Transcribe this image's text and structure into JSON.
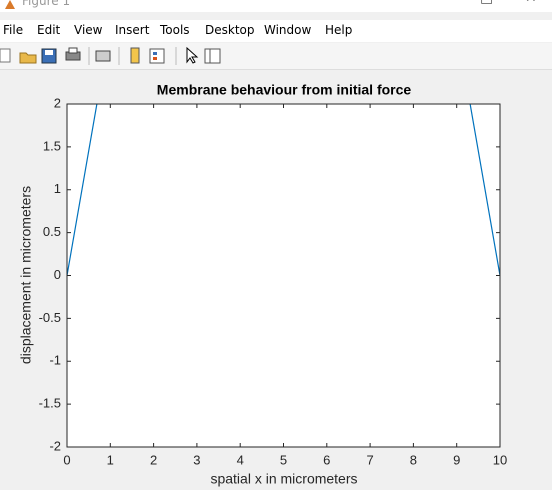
{
  "window": {
    "title": "Figure 1",
    "menu": [
      "File",
      "Edit",
      "View",
      "Insert",
      "Tools",
      "Desktop",
      "Window",
      "Help"
    ]
  },
  "chart_data": {
    "type": "line",
    "title": "Membrane behaviour from initial force",
    "xlabel": "spatial x in micrometers",
    "ylabel": "displacement in micrometers",
    "series": [
      {
        "color": "#0072bd",
        "x": [
          0,
          0.69
        ],
        "values": [
          0,
          2
        ]
      },
      {
        "color": "#0072bd",
        "x": [
          9.31,
          10
        ],
        "values": [
          2,
          0
        ]
      }
    ],
    "xlim": [
      0,
      10
    ],
    "xticks": [
      0,
      1,
      2,
      3,
      4,
      5,
      6,
      7,
      8,
      9,
      10
    ],
    "ylim": [
      -2,
      2
    ],
    "yticks": [
      -2,
      -1.5,
      -1,
      -0.5,
      0,
      0.5,
      1,
      1.5,
      2
    ],
    "grid": false
  }
}
